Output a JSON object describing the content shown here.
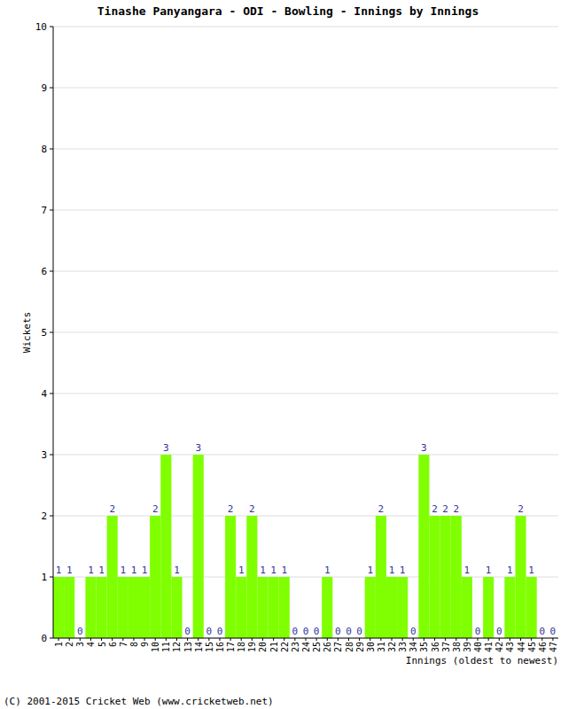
{
  "chart_data": {
    "type": "bar",
    "title": "Tinashe Panyangara - ODI - Bowling - Innings by Innings",
    "xlabel": "Innings (oldest to newest)",
    "ylabel": "Wickets",
    "caption": "(C) 2001-2015 Cricket Web (www.cricketweb.net)",
    "categories": [
      "1",
      "2",
      "3",
      "4",
      "5",
      "6",
      "7",
      "8",
      "9",
      "10",
      "11",
      "12",
      "13",
      "14",
      "15",
      "16",
      "17",
      "18",
      "19",
      "20",
      "21",
      "22",
      "23",
      "24",
      "25",
      "26",
      "27",
      "28",
      "29",
      "30",
      "31",
      "32",
      "33",
      "34",
      "35",
      "36",
      "37",
      "38",
      "39",
      "40",
      "41",
      "42",
      "43",
      "44",
      "45",
      "46",
      "47"
    ],
    "values": [
      1,
      1,
      0,
      1,
      1,
      2,
      1,
      1,
      1,
      2,
      3,
      1,
      0,
      3,
      0,
      0,
      2,
      1,
      2,
      1,
      1,
      1,
      0,
      0,
      0,
      1,
      0,
      0,
      0,
      1,
      2,
      1,
      1,
      0,
      3,
      2,
      2,
      2,
      1,
      0,
      1,
      0,
      1,
      2,
      1,
      0,
      0
    ],
    "color": "#80ff00",
    "ylim": [
      0,
      10
    ],
    "yticks": [
      0,
      1,
      2,
      3,
      4,
      5,
      6,
      7,
      8,
      9,
      10
    ],
    "grid": true,
    "data_labels": true
  }
}
